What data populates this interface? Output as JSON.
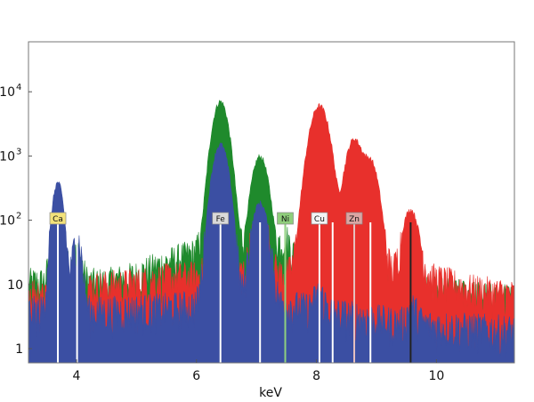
{
  "chart_data": {
    "type": "area",
    "title": "",
    "xlabel": "keV",
    "ylabel": "",
    "xlim": [
      3.2,
      11.3
    ],
    "ylim": [
      0.6,
      60000
    ],
    "y_scale": "log",
    "grid": false,
    "legend": "none",
    "x_ticks": [
      {
        "value": 4,
        "label": "4"
      },
      {
        "value": 6,
        "label": "6"
      },
      {
        "value": 8,
        "label": "8"
      },
      {
        "value": 10,
        "label": "10"
      }
    ],
    "y_ticks": [
      {
        "value": 1,
        "label": "1"
      },
      {
        "value": 10,
        "label": "10"
      },
      {
        "value": 100,
        "label": "10",
        "exponent": "2"
      },
      {
        "value": 1000,
        "label": "10",
        "exponent": "3"
      },
      {
        "value": 10000,
        "label": "10",
        "exponent": "4"
      }
    ],
    "series": [
      {
        "color": "#1f8a2c",
        "baseline": [
          [
            3.2,
            11
          ],
          [
            4.5,
            11
          ],
          [
            5.0,
            14
          ],
          [
            5.5,
            22
          ],
          [
            5.9,
            30
          ],
          [
            6.05,
            35
          ],
          [
            7.4,
            30
          ],
          [
            7.9,
            22
          ],
          [
            8.5,
            14
          ],
          [
            9.0,
            10
          ],
          [
            10.0,
            8
          ],
          [
            11.3,
            6
          ]
        ],
        "peaks": [
          {
            "center": 3.69,
            "height": 150,
            "width": 0.07
          },
          {
            "center": 4.01,
            "height": 20,
            "width": 0.07
          },
          {
            "center": 6.4,
            "height": 7000,
            "width": 0.1
          },
          {
            "center": 7.06,
            "height": 950,
            "width": 0.1
          },
          {
            "center": 7.48,
            "height": 25,
            "width": 0.08
          },
          {
            "center": 8.05,
            "height": 30,
            "width": 0.08
          }
        ]
      },
      {
        "color": "#e8302c",
        "baseline": [
          [
            3.2,
            8
          ],
          [
            4.0,
            9
          ],
          [
            5.0,
            11
          ],
          [
            5.5,
            13
          ],
          [
            6.0,
            14
          ],
          [
            7.0,
            14
          ],
          [
            7.5,
            15
          ],
          [
            7.8,
            20
          ],
          [
            9.0,
            18
          ],
          [
            9.8,
            14
          ],
          [
            10.5,
            9
          ],
          [
            11.3,
            7
          ]
        ],
        "peaks": [
          {
            "center": 3.69,
            "height": 25,
            "width": 0.07
          },
          {
            "center": 6.4,
            "height": 220,
            "width": 0.1
          },
          {
            "center": 7.06,
            "height": 110,
            "width": 0.1
          },
          {
            "center": 8.05,
            "height": 6000,
            "width": 0.12
          },
          {
            "center": 8.63,
            "height": 1800,
            "width": 0.11
          },
          {
            "center": 8.9,
            "height": 800,
            "width": 0.1
          },
          {
            "center": 9.57,
            "height": 130,
            "width": 0.1
          }
        ]
      },
      {
        "color": "#3b4fa3",
        "baseline": [
          [
            3.2,
            4
          ],
          [
            4.5,
            4
          ],
          [
            5.5,
            4.5
          ],
          [
            6.0,
            5
          ],
          [
            7.5,
            5
          ],
          [
            8.5,
            3.5
          ],
          [
            9.5,
            2.5
          ],
          [
            11.3,
            2
          ]
        ],
        "peaks": [
          {
            "center": 3.69,
            "height": 380,
            "width": 0.07
          },
          {
            "center": 4.01,
            "height": 50,
            "width": 0.06
          },
          {
            "center": 6.4,
            "height": 1500,
            "width": 0.1
          },
          {
            "center": 7.06,
            "height": 180,
            "width": 0.1
          },
          {
            "center": 8.05,
            "height": 3,
            "width": 0.08
          },
          {
            "center": 9.6,
            "height": 2,
            "width": 0.08
          }
        ]
      }
    ],
    "element_markers": [
      {
        "label": "Ca",
        "energy": 3.69,
        "bg": "#f3e27a"
      },
      {
        "label": "Fe",
        "energy": 6.4,
        "bg": "#d9d9d9"
      },
      {
        "label": "Ni",
        "energy": 7.48,
        "bg": "#8fce7b"
      },
      {
        "label": "Cu",
        "energy": 8.05,
        "bg": "#f4f4f4"
      },
      {
        "label": "Zn",
        "energy": 8.63,
        "bg": "#dba5a3"
      }
    ],
    "line_markers": [
      {
        "energy": 3.69,
        "color": "#ffffff"
      },
      {
        "energy": 4.01,
        "color": "#ffffff"
      },
      {
        "energy": 6.4,
        "color": "#ffffff"
      },
      {
        "energy": 7.06,
        "color": "#ffffff"
      },
      {
        "energy": 7.48,
        "color": "#8fd07f"
      },
      {
        "energy": 8.05,
        "color": "#ffffff"
      },
      {
        "energy": 8.27,
        "color": "#ffffff"
      },
      {
        "energy": 8.63,
        "color": "#e6c1c0"
      },
      {
        "energy": 8.9,
        "color": "#ffffff"
      },
      {
        "energy": 9.57,
        "color": "#222222"
      }
    ]
  }
}
